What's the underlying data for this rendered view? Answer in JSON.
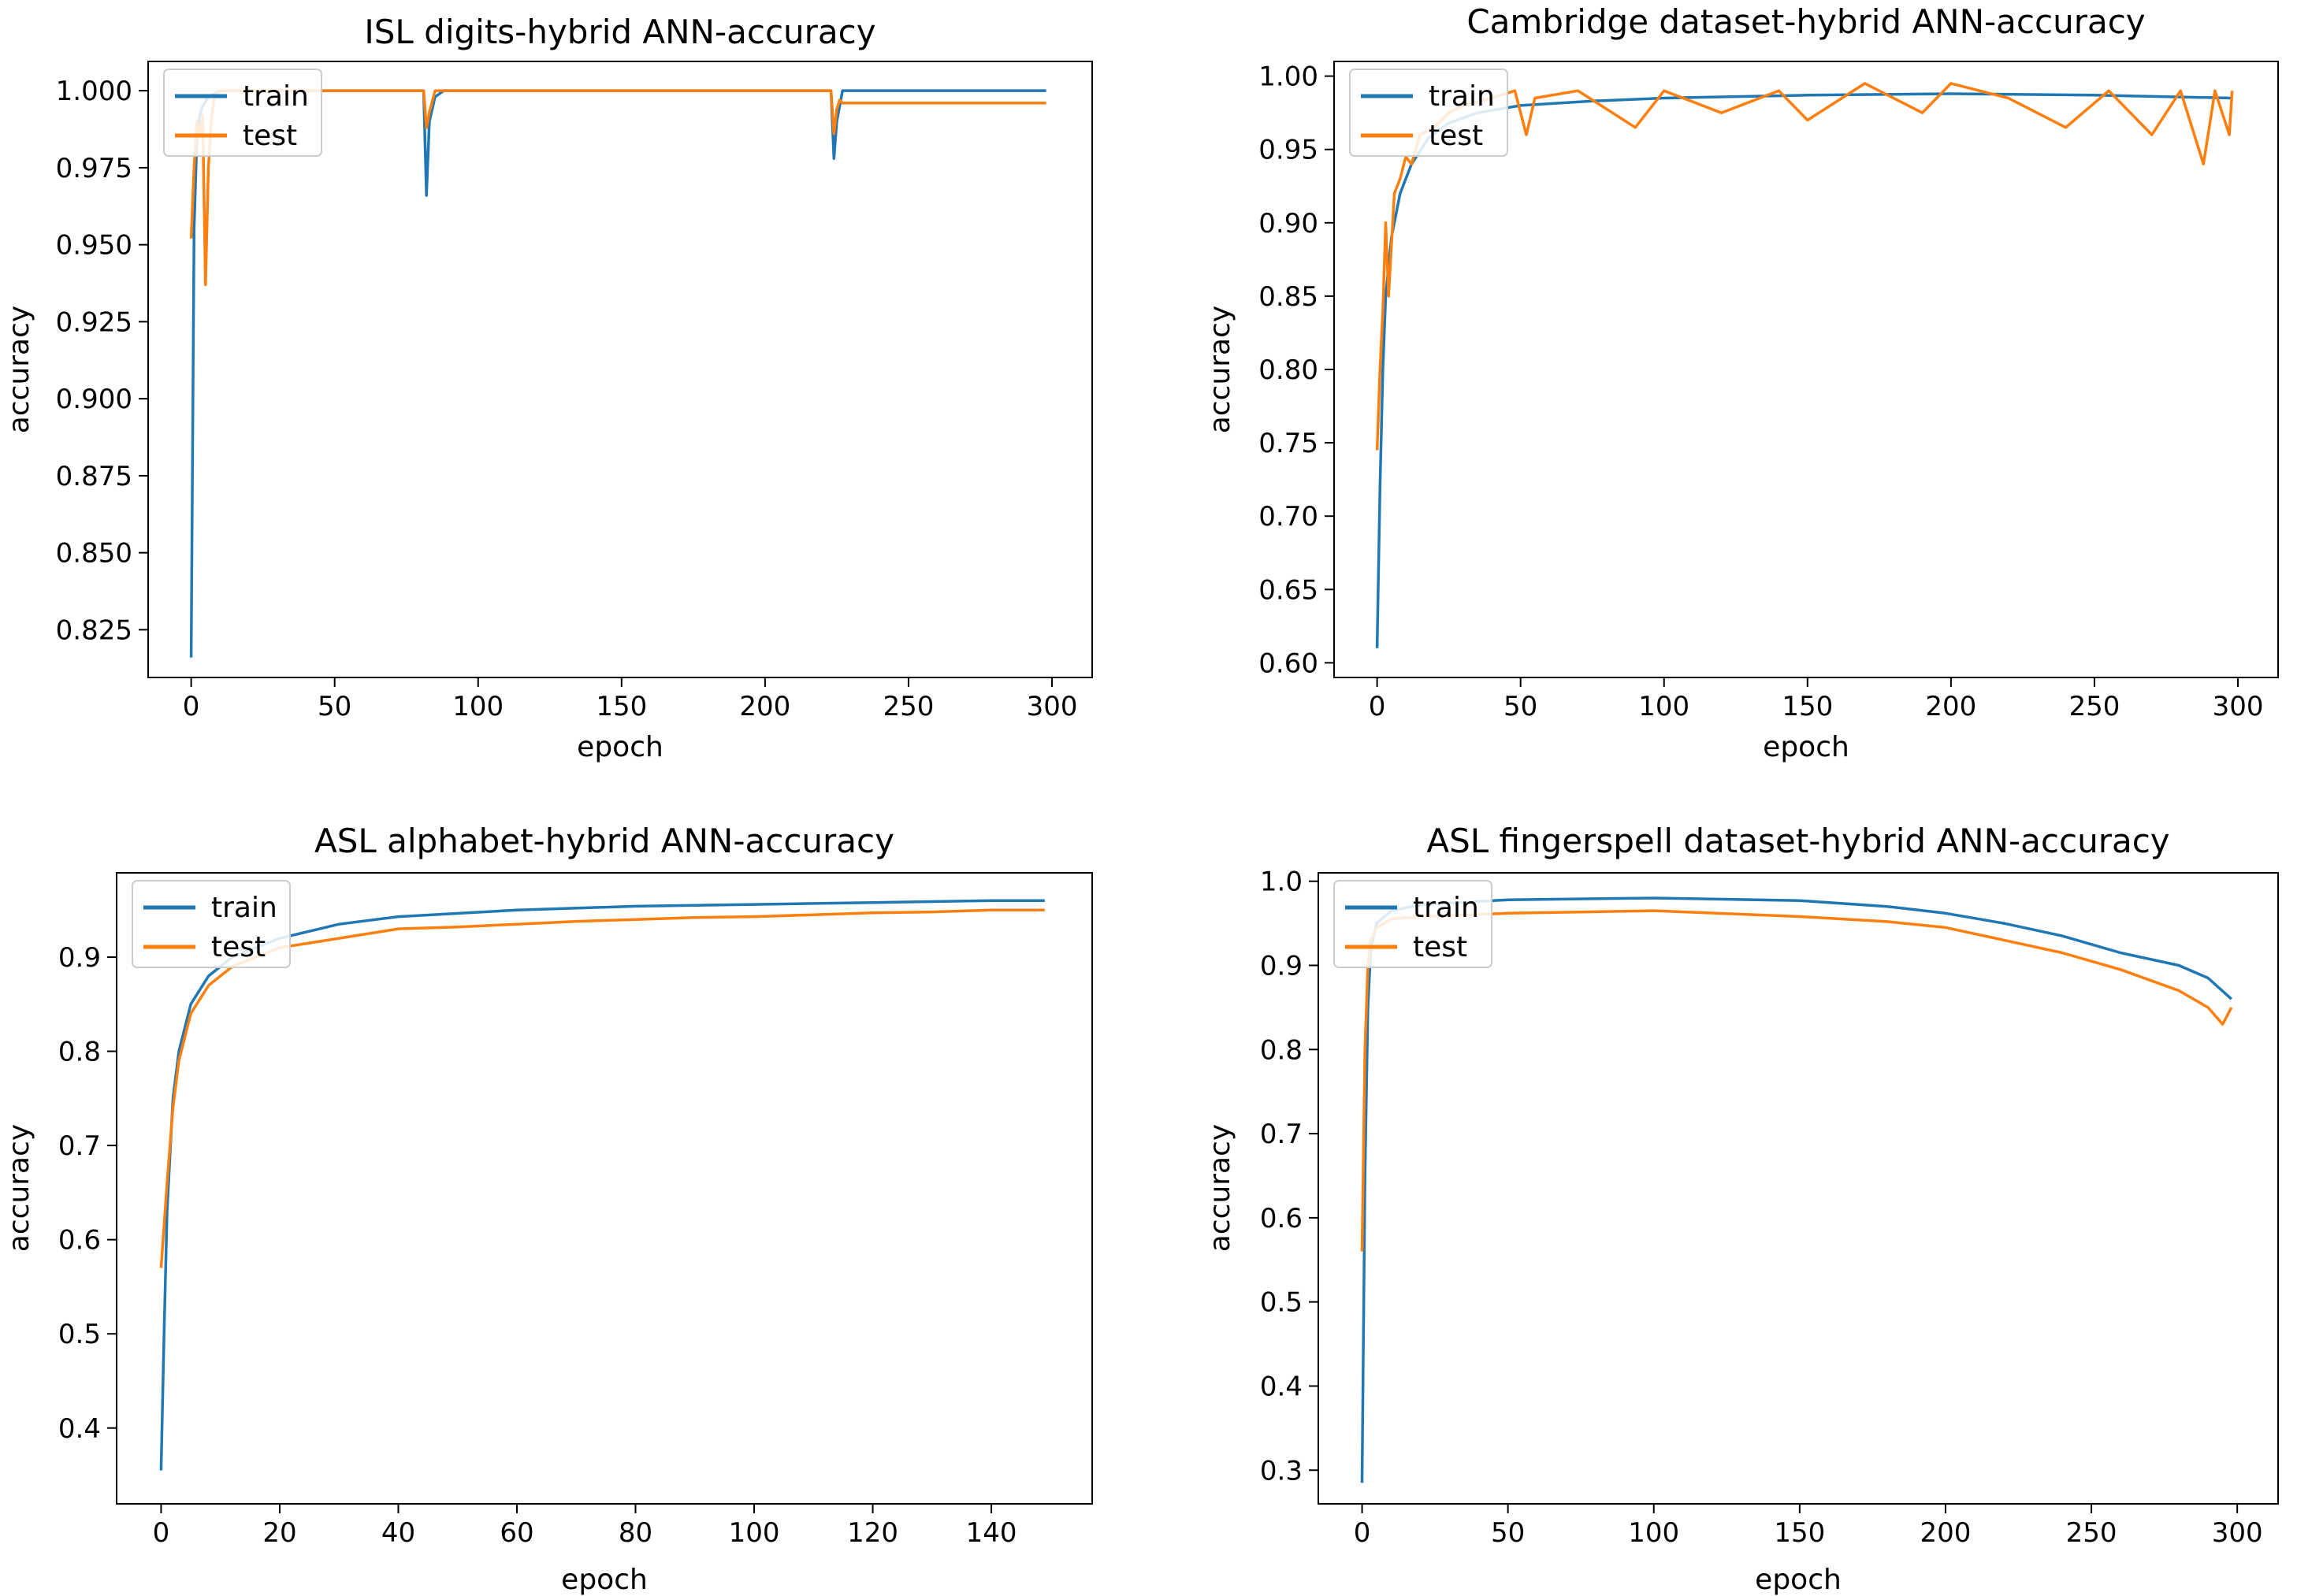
{
  "colors": {
    "train": "#1f77b4",
    "test": "#ff7f0e",
    "axes": "#000000"
  },
  "chart_data": [
    {
      "type": "line",
      "title": "ISL digits-hybrid ANN-accuracy",
      "xlabel": "epoch",
      "ylabel": "accuracy",
      "xlim": [
        -15,
        314
      ],
      "ylim": [
        0.8095,
        1.0095
      ],
      "xticks": [
        0,
        50,
        100,
        150,
        200,
        250,
        300
      ],
      "yticks": [
        0.825,
        0.85,
        0.875,
        0.9,
        0.925,
        0.95,
        0.975,
        1.0
      ],
      "ytick_labels": [
        "0.825",
        "0.850",
        "0.875",
        "0.900",
        "0.925",
        "0.950",
        "0.975",
        "1.000"
      ],
      "legend": {
        "location": "top-left",
        "entries": [
          "train",
          "test"
        ]
      },
      "series": [
        {
          "name": "train",
          "points": [
            [
              0,
              0.816
            ],
            [
              1,
              0.955
            ],
            [
              2,
              0.985
            ],
            [
              3,
              0.992
            ],
            [
              4,
              0.995
            ],
            [
              6,
              0.998
            ],
            [
              10,
              1.0
            ],
            [
              81,
              1.0
            ],
            [
              82,
              0.966
            ],
            [
              83,
              0.99
            ],
            [
              85,
              0.998
            ],
            [
              88,
              1.0
            ],
            [
              223,
              1.0
            ],
            [
              224,
              0.978
            ],
            [
              225,
              0.99
            ],
            [
              227,
              1.0
            ],
            [
              298,
              1.0
            ]
          ]
        },
        {
          "name": "test",
          "points": [
            [
              0,
              0.952
            ],
            [
              1,
              0.975
            ],
            [
              2,
              0.99
            ],
            [
              3,
              0.985
            ],
            [
              4,
              0.992
            ],
            [
              5,
              0.937
            ],
            [
              6,
              0.975
            ],
            [
              7,
              0.99
            ],
            [
              8,
              0.998
            ],
            [
              10,
              1.0
            ],
            [
              81,
              1.0
            ],
            [
              82,
              0.988
            ],
            [
              83,
              0.993
            ],
            [
              85,
              1.0
            ],
            [
              223,
              1.0
            ],
            [
              224,
              0.986
            ],
            [
              225,
              0.994
            ],
            [
              226,
              0.997
            ],
            [
              227,
              0.996
            ],
            [
              298,
              0.996
            ]
          ]
        }
      ]
    },
    {
      "type": "line",
      "title": "Cambridge dataset-hybrid ANN-accuracy",
      "xlabel": "epoch",
      "ylabel": "accuracy",
      "xlim": [
        -15,
        314
      ],
      "ylim": [
        0.59,
        1.01
      ],
      "xticks": [
        0,
        50,
        100,
        150,
        200,
        250,
        300
      ],
      "yticks": [
        0.6,
        0.65,
        0.7,
        0.75,
        0.8,
        0.85,
        0.9,
        0.95,
        1.0
      ],
      "ytick_labels": [
        "0.60",
        "0.65",
        "0.70",
        "0.75",
        "0.80",
        "0.85",
        "0.90",
        "0.95",
        "1.00"
      ],
      "legend": {
        "location": "top-left",
        "entries": [
          "train",
          "test"
        ]
      },
      "series": [
        {
          "name": "train",
          "points": [
            [
              0,
              0.61
            ],
            [
              1,
              0.72
            ],
            [
              2,
              0.8
            ],
            [
              3,
              0.85
            ],
            [
              5,
              0.89
            ],
            [
              8,
              0.92
            ],
            [
              12,
              0.94
            ],
            [
              18,
              0.958
            ],
            [
              25,
              0.968
            ],
            [
              35,
              0.975
            ],
            [
              50,
              0.98
            ],
            [
              75,
              0.983
            ],
            [
              100,
              0.985
            ],
            [
              150,
              0.987
            ],
            [
              200,
              0.988
            ],
            [
              250,
              0.987
            ],
            [
              298,
              0.985
            ]
          ]
        },
        {
          "name": "test",
          "points": [
            [
              0,
              0.745
            ],
            [
              1,
              0.8
            ],
            [
              2,
              0.84
            ],
            [
              3,
              0.9
            ],
            [
              4,
              0.85
            ],
            [
              6,
              0.92
            ],
            [
              8,
              0.93
            ],
            [
              10,
              0.945
            ],
            [
              12,
              0.94
            ],
            [
              15,
              0.96
            ],
            [
              20,
              0.965
            ],
            [
              25,
              0.975
            ],
            [
              30,
              0.98
            ],
            [
              40,
              0.985
            ],
            [
              48,
              0.99
            ],
            [
              52,
              0.96
            ],
            [
              55,
              0.985
            ],
            [
              70,
              0.99
            ],
            [
              90,
              0.965
            ],
            [
              100,
              0.99
            ],
            [
              120,
              0.975
            ],
            [
              140,
              0.99
            ],
            [
              150,
              0.97
            ],
            [
              170,
              0.995
            ],
            [
              190,
              0.975
            ],
            [
              200,
              0.995
            ],
            [
              220,
              0.985
            ],
            [
              240,
              0.965
            ],
            [
              255,
              0.99
            ],
            [
              270,
              0.96
            ],
            [
              280,
              0.99
            ],
            [
              288,
              0.94
            ],
            [
              292,
              0.99
            ],
            [
              297,
              0.96
            ],
            [
              298,
              0.99
            ]
          ]
        }
      ]
    },
    {
      "type": "line",
      "title": "ASL alphabet-hybrid ANN-accuracy",
      "xlabel": "epoch",
      "ylabel": "accuracy",
      "xlim": [
        -7.5,
        157
      ],
      "ylim": [
        0.3195,
        0.9895
      ],
      "xticks": [
        0,
        20,
        40,
        60,
        80,
        100,
        120,
        140
      ],
      "yticks": [
        0.4,
        0.5,
        0.6,
        0.7,
        0.8,
        0.9
      ],
      "ytick_labels": [
        "0.4",
        "0.5",
        "0.6",
        "0.7",
        "0.8",
        "0.9"
      ],
      "legend": {
        "location": "top-left",
        "entries": [
          "train",
          "test"
        ]
      },
      "series": [
        {
          "name": "train",
          "points": [
            [
              0,
              0.355
            ],
            [
              0.5,
              0.5
            ],
            [
              1,
              0.63
            ],
            [
              2,
              0.75
            ],
            [
              3,
              0.8
            ],
            [
              5,
              0.85
            ],
            [
              8,
              0.88
            ],
            [
              12,
              0.9
            ],
            [
              20,
              0.92
            ],
            [
              30,
              0.935
            ],
            [
              40,
              0.943
            ],
            [
              60,
              0.95
            ],
            [
              80,
              0.954
            ],
            [
              100,
              0.956
            ],
            [
              120,
              0.958
            ],
            [
              140,
              0.96
            ],
            [
              149,
              0.96
            ]
          ]
        },
        {
          "name": "test",
          "points": [
            [
              0,
              0.57
            ],
            [
              1,
              0.66
            ],
            [
              2,
              0.74
            ],
            [
              3,
              0.79
            ],
            [
              5,
              0.84
            ],
            [
              8,
              0.87
            ],
            [
              12,
              0.89
            ],
            [
              20,
              0.91
            ],
            [
              25,
              0.915
            ],
            [
              30,
              0.92
            ],
            [
              40,
              0.93
            ],
            [
              50,
              0.932
            ],
            [
              60,
              0.935
            ],
            [
              70,
              0.938
            ],
            [
              80,
              0.94
            ],
            [
              90,
              0.942
            ],
            [
              100,
              0.943
            ],
            [
              110,
              0.945
            ],
            [
              120,
              0.947
            ],
            [
              130,
              0.948
            ],
            [
              140,
              0.95
            ],
            [
              149,
              0.95
            ]
          ]
        }
      ]
    },
    {
      "type": "line",
      "title": "ASL fingerspell dataset-hybrid ANN-accuracy",
      "xlabel": "epoch",
      "ylabel": "accuracy",
      "xlim": [
        -15,
        314
      ],
      "ylim": [
        0.26,
        1.01
      ],
      "xticks": [
        0,
        50,
        100,
        150,
        200,
        250,
        300
      ],
      "yticks": [
        0.3,
        0.4,
        0.5,
        0.6,
        0.7,
        0.8,
        0.9,
        1.0
      ],
      "ytick_labels": [
        "0.3",
        "0.4",
        "0.5",
        "0.6",
        "0.7",
        "0.8",
        "0.9",
        "1.0"
      ],
      "legend": {
        "location": "top-left",
        "entries": [
          "train",
          "test"
        ]
      },
      "series": [
        {
          "name": "train",
          "points": [
            [
              0,
              0.285
            ],
            [
              1,
              0.65
            ],
            [
              2,
              0.85
            ],
            [
              3,
              0.92
            ],
            [
              5,
              0.95
            ],
            [
              10,
              0.965
            ],
            [
              20,
              0.972
            ],
            [
              50,
              0.978
            ],
            [
              100,
              0.98
            ],
            [
              150,
              0.977
            ],
            [
              180,
              0.97
            ],
            [
              200,
              0.962
            ],
            [
              220,
              0.95
            ],
            [
              240,
              0.935
            ],
            [
              260,
              0.915
            ],
            [
              280,
              0.9
            ],
            [
              290,
              0.885
            ],
            [
              298,
              0.86
            ]
          ]
        },
        {
          "name": "test",
          "points": [
            [
              0,
              0.56
            ],
            [
              1,
              0.8
            ],
            [
              2,
              0.9
            ],
            [
              3,
              0.93
            ],
            [
              5,
              0.945
            ],
            [
              10,
              0.955
            ],
            [
              20,
              0.958
            ],
            [
              50,
              0.962
            ],
            [
              100,
              0.965
            ],
            [
              150,
              0.958
            ],
            [
              180,
              0.952
            ],
            [
              200,
              0.945
            ],
            [
              220,
              0.93
            ],
            [
              240,
              0.915
            ],
            [
              260,
              0.895
            ],
            [
              280,
              0.87
            ],
            [
              290,
              0.85
            ],
            [
              295,
              0.83
            ],
            [
              298,
              0.85
            ]
          ]
        }
      ]
    }
  ]
}
